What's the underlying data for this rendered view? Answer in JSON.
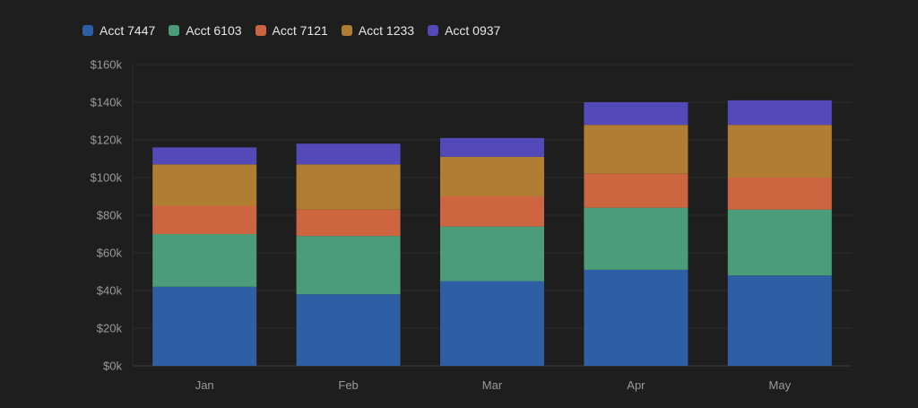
{
  "chart_data": {
    "type": "bar",
    "stacked": true,
    "categories": [
      "Jan",
      "Feb",
      "Mar",
      "Apr",
      "May"
    ],
    "series": [
      {
        "name": "Acct 7447",
        "color": "#2e5ea3",
        "values": [
          42000,
          38000,
          45000,
          51000,
          48000
        ]
      },
      {
        "name": "Acct 6103",
        "color": "#4a9d78",
        "values": [
          28000,
          31000,
          29000,
          33000,
          35000
        ]
      },
      {
        "name": "Acct 7121",
        "color": "#cc6540",
        "values": [
          15000,
          14000,
          16000,
          18000,
          17000
        ]
      },
      {
        "name": "Acct 1233",
        "color": "#b07d32",
        "values": [
          22000,
          24000,
          21000,
          26000,
          28000
        ]
      },
      {
        "name": "Acct 0937",
        "color": "#5449b8",
        "values": [
          9000,
          11000,
          10000,
          12000,
          13000
        ]
      }
    ],
    "yticks": [
      "$0k",
      "$20k",
      "$40k",
      "$60k",
      "$80k",
      "$100k",
      "$120k",
      "$140k",
      "$160k"
    ],
    "ylim": [
      0,
      160000
    ],
    "grid": true,
    "legend_position": "top-left",
    "title": "",
    "xlabel": "",
    "ylabel": ""
  },
  "colors": {
    "background": "#1e1e1e",
    "grid": "#2c2c2c",
    "axis": "#3a3a3a",
    "tick_text": "#9a9a9a"
  }
}
